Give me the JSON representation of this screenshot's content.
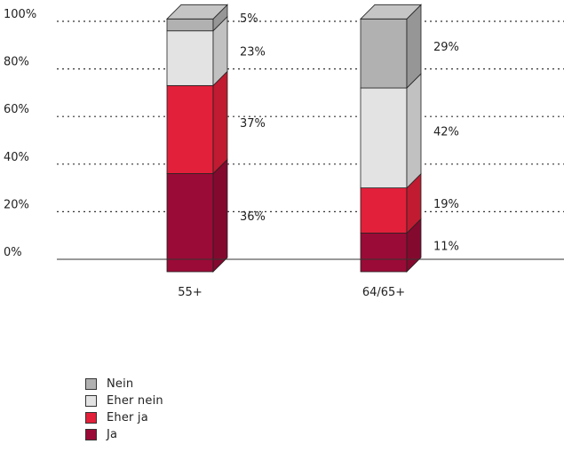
{
  "chart_data": {
    "type": "bar",
    "stacked": true,
    "style": "3d",
    "categories": [
      "55+",
      "64/65+"
    ],
    "yticks": [
      "0%",
      "20%",
      "40%",
      "60%",
      "80%",
      "100%"
    ],
    "ylim": [
      0,
      100
    ],
    "grid": "dotted horizontal",
    "legend_position": "bottom-left",
    "series": [
      {
        "name": "Ja",
        "color": "#9b0b37",
        "values": [
          36,
          11
        ],
        "labels": [
          "36%",
          "11%"
        ]
      },
      {
        "name": "Eher ja",
        "color": "#e2203a",
        "values": [
          37,
          19
        ],
        "labels": [
          "37%",
          "19%"
        ]
      },
      {
        "name": "Eher nein",
        "color": "#e3e3e3",
        "values": [
          23,
          42
        ],
        "labels": [
          "23%",
          "42%"
        ]
      },
      {
        "name": "Nein",
        "color": "#b1b1b1",
        "values": [
          5,
          29
        ],
        "labels": [
          "5%",
          "29%"
        ]
      }
    ]
  }
}
